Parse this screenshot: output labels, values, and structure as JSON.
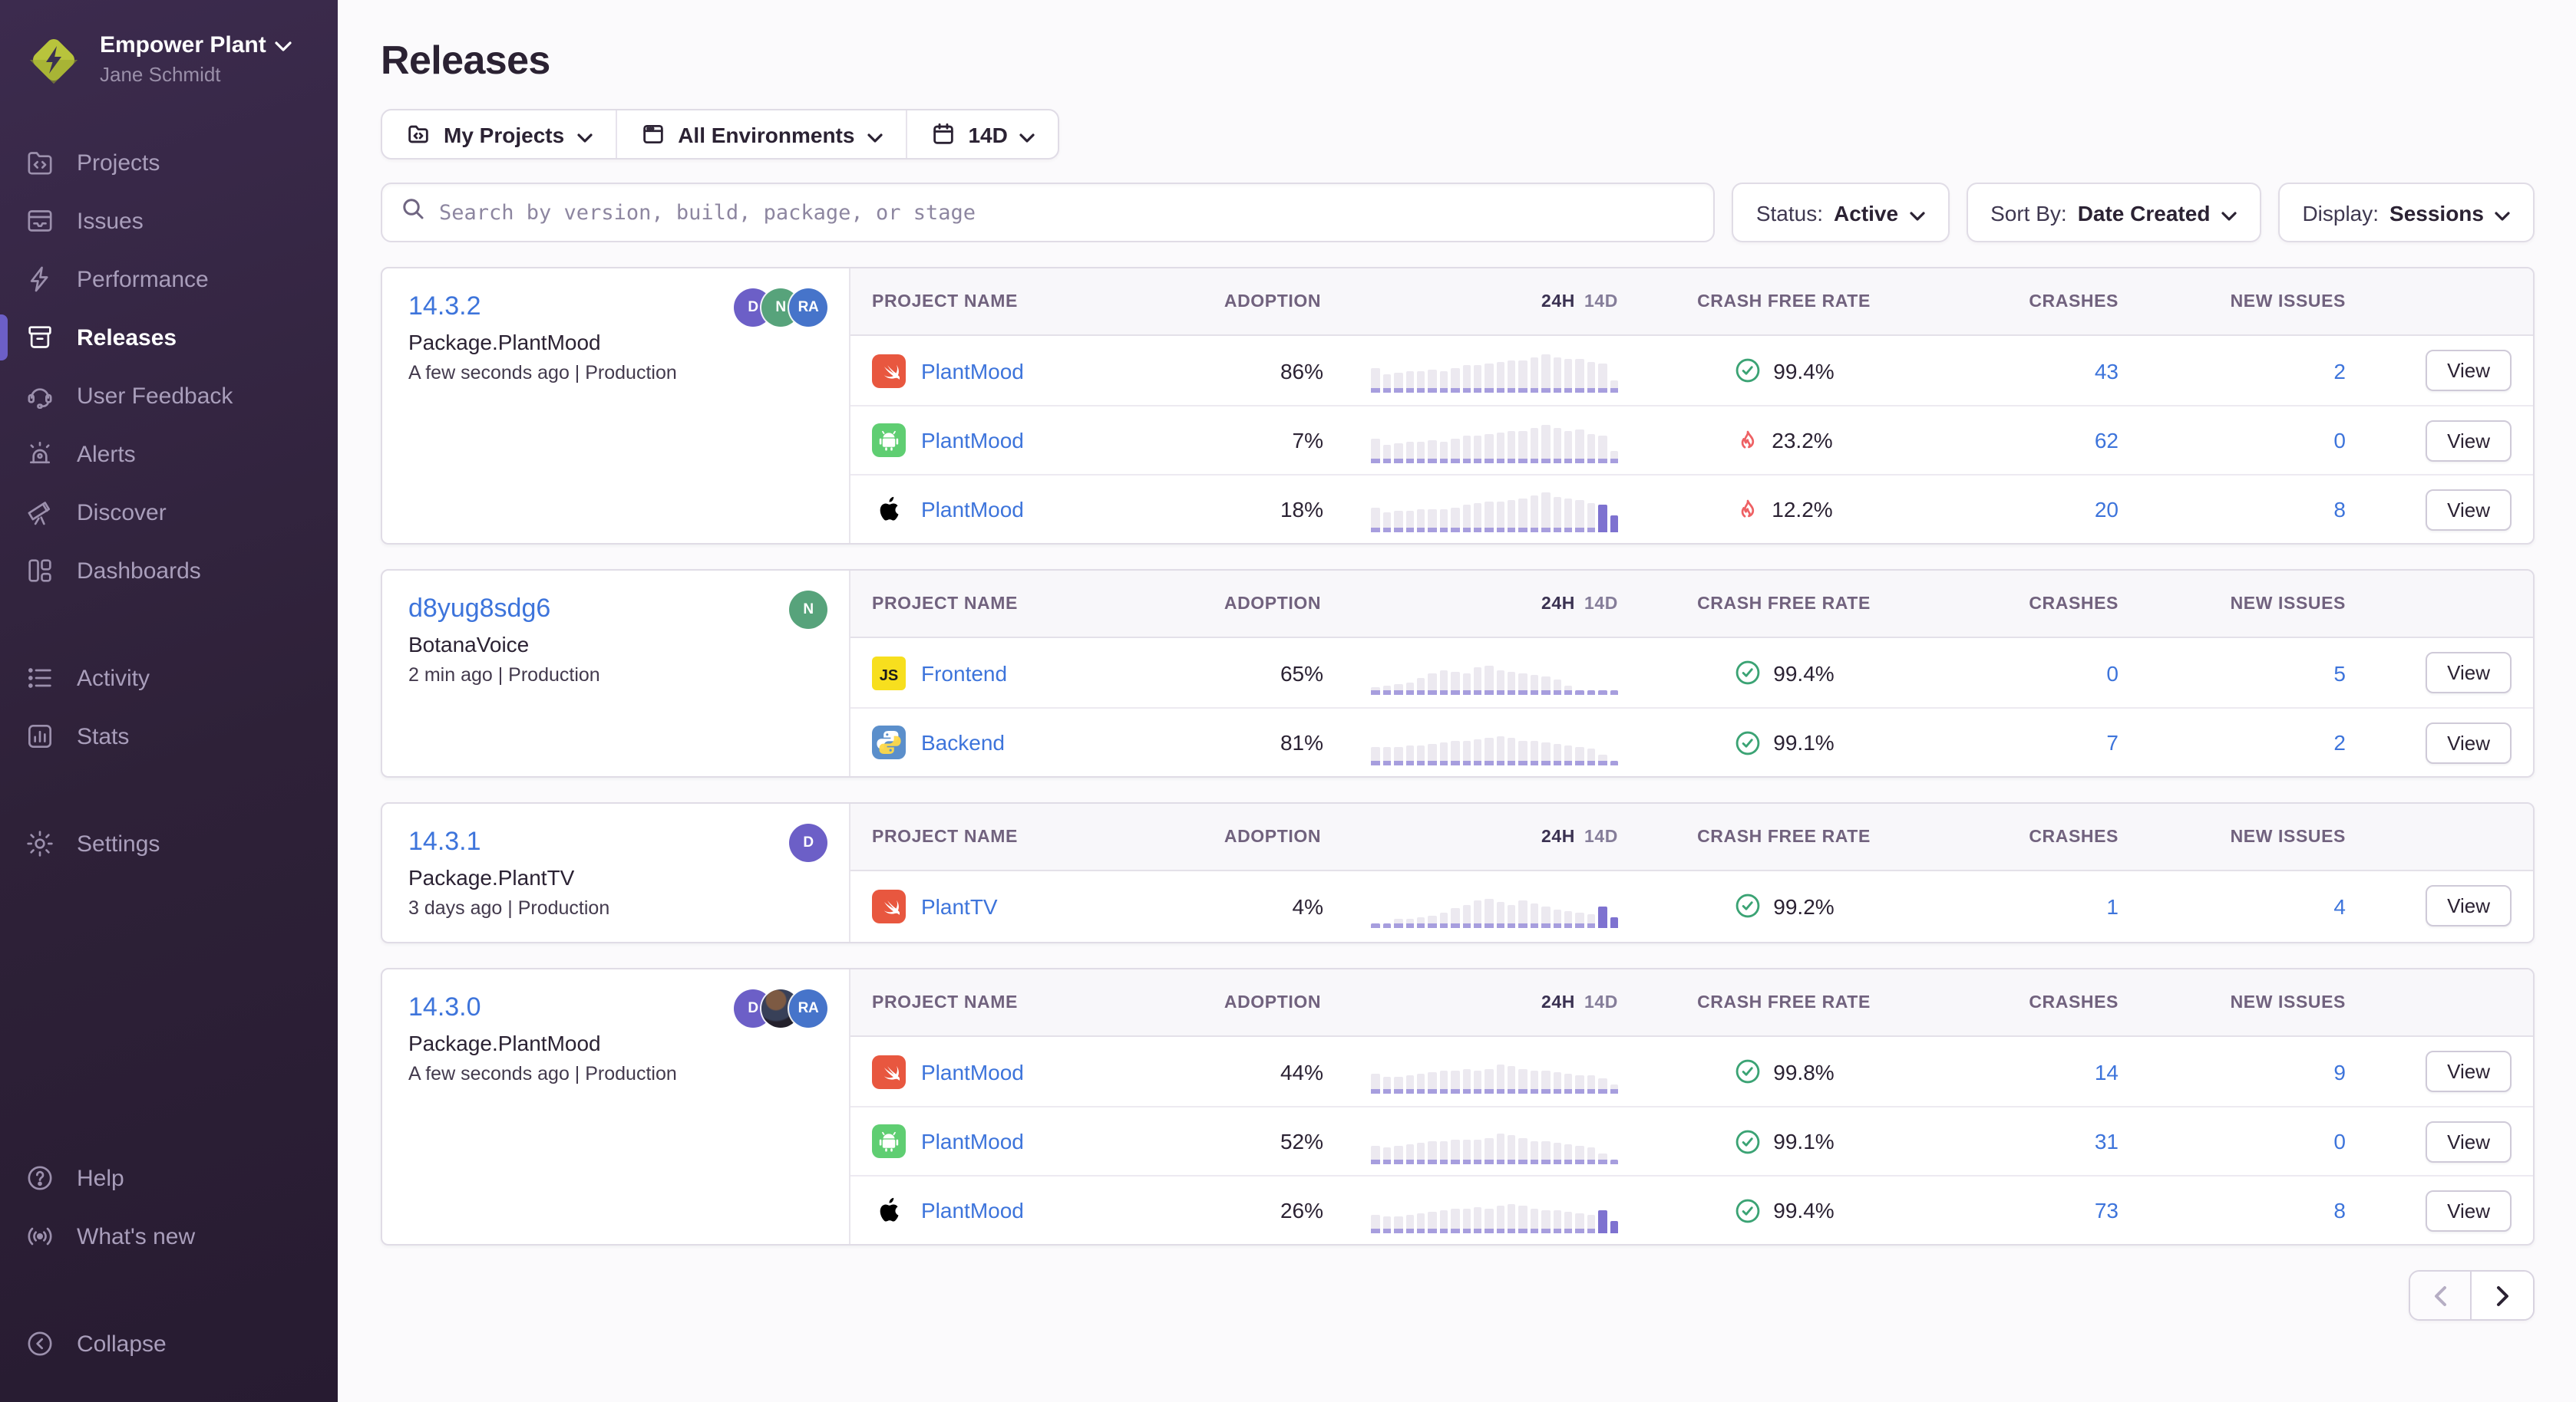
{
  "colors": {
    "accent": "#6C5FC7",
    "link_blue": "#3D74DB",
    "ok_green": "#3BA374",
    "danger_red": "#EE6164",
    "bar_gray": "#ECE9F0",
    "bar_base_purple": "#A79EDE",
    "bar_highlight_purple": "#7E72D0",
    "sidebar_top": "#3C2B4E",
    "sidebar_bottom": "#271B31"
  },
  "sidebar": {
    "org": {
      "name": "Empower Plant",
      "user": "Jane Schmidt"
    },
    "nav_primary": [
      {
        "label": "Projects",
        "icon": "projects-icon",
        "active": false
      },
      {
        "label": "Issues",
        "icon": "issues-icon",
        "active": false
      },
      {
        "label": "Performance",
        "icon": "performance-icon",
        "active": false
      },
      {
        "label": "Releases",
        "icon": "releases-icon",
        "active": true
      },
      {
        "label": "User Feedback",
        "icon": "user-feedback-icon",
        "active": false
      },
      {
        "label": "Alerts",
        "icon": "alerts-icon",
        "active": false
      },
      {
        "label": "Discover",
        "icon": "discover-icon",
        "active": false
      },
      {
        "label": "Dashboards",
        "icon": "dashboards-icon",
        "active": false
      }
    ],
    "nav_secondary": [
      {
        "label": "Activity",
        "icon": "activity-icon",
        "active": false
      },
      {
        "label": "Stats",
        "icon": "stats-icon",
        "active": false
      }
    ],
    "nav_tertiary": [
      {
        "label": "Settings",
        "icon": "settings-icon",
        "active": false
      }
    ],
    "nav_footer": [
      {
        "label": "Help",
        "icon": "help-icon",
        "active": false
      },
      {
        "label": "What's new",
        "icon": "whats-new-icon",
        "active": false
      }
    ],
    "nav_collapse": [
      {
        "label": "Collapse",
        "icon": "collapse-icon",
        "active": false
      }
    ]
  },
  "header": {
    "title": "Releases",
    "filters": [
      {
        "label": "My Projects",
        "icon": "my-projects-icon"
      },
      {
        "label": "All Environments",
        "icon": "environments-icon"
      },
      {
        "label": "14D",
        "icon": "calendar-icon"
      }
    ],
    "search": {
      "placeholder": "Search by version, build, package, or stage"
    },
    "dropdowns": [
      {
        "label": "Status:",
        "value": "Active"
      },
      {
        "label": "Sort By:",
        "value": "Date Created"
      },
      {
        "label": "Display:",
        "value": "Sessions"
      }
    ]
  },
  "table_headers": {
    "project": "Project Name",
    "adoption": "Adoption",
    "trend_24h": "24H",
    "trend_14d": "14D",
    "crash_free": "Crash Free Rate",
    "crashes": "Crashes",
    "new_issues": "New Issues"
  },
  "view_label": "View",
  "releases": [
    {
      "version": "14.3.2",
      "package": "Package.PlantMood",
      "meta": "A few seconds ago | Production",
      "avatars": [
        {
          "type": "initials",
          "initials": "D",
          "color": "#6C5FC7"
        },
        {
          "type": "initials",
          "initials": "N",
          "color": "#57A37B"
        },
        {
          "type": "initials",
          "initials": "RA",
          "color": "#4674CA"
        }
      ],
      "rows": [
        {
          "platform": "swift-icon",
          "project": "PlantMood",
          "adoption": "86%",
          "status": "ok",
          "crash_free": "99.4%",
          "crashes": "43",
          "new_issues": "2",
          "trend": {
            "bars": [
              50,
              34,
              38,
              40,
              42,
              45,
              42,
              48,
              55,
              55,
              60,
              62,
              65,
              68,
              75,
              82,
              75,
              70,
              72,
              62,
              58,
              20
            ],
            "highlight_last": 0
          }
        },
        {
          "platform": "android-icon",
          "project": "PlantMood",
          "adoption": "7%",
          "status": "fire",
          "crash_free": "23.2%",
          "crashes": "62",
          "new_issues": "0",
          "trend": {
            "bars": [
              46,
              32,
              36,
              38,
              40,
              42,
              40,
              46,
              52,
              54,
              58,
              60,
              64,
              66,
              72,
              80,
              72,
              66,
              68,
              58,
              54,
              16
            ],
            "highlight_last": 0
          }
        },
        {
          "platform": "apple-icon",
          "project": "PlantMood",
          "adoption": "18%",
          "status": "fire",
          "crash_free": "12.2%",
          "crashes": "20",
          "new_issues": "8",
          "trend": {
            "bars": [
              48,
              34,
              38,
              40,
              42,
              44,
              42,
              48,
              54,
              56,
              60,
              62,
              66,
              70,
              76,
              82,
              74,
              68,
              64,
              58,
              55,
              28
            ],
            "highlight_last": 2
          }
        }
      ]
    },
    {
      "version": "d8yug8sdg6",
      "package": "BotanaVoice",
      "meta": "2 min ago | Production",
      "avatars": [
        {
          "type": "initials",
          "initials": "N",
          "color": "#57A37B"
        }
      ],
      "rows": [
        {
          "platform": "javascript-icon",
          "project": "Frontend",
          "adoption": "65%",
          "status": "ok",
          "crash_free": "99.4%",
          "crashes": "0",
          "new_issues": "5",
          "trend": {
            "bars": [
              8,
              10,
              14,
              20,
              30,
              40,
              48,
              44,
              40,
              55,
              60,
              48,
              44,
              40,
              36,
              32,
              26,
              12,
              0,
              0,
              0,
              0
            ],
            "highlight_last": 0
          }
        },
        {
          "platform": "python-icon",
          "project": "Backend",
          "adoption": "81%",
          "status": "ok",
          "crash_free": "99.1%",
          "crashes": "7",
          "new_issues": "2",
          "trend": {
            "bars": [
              32,
              30,
              32,
              34,
              36,
              38,
              42,
              46,
              48,
              50,
              54,
              58,
              52,
              48,
              46,
              42,
              38,
              36,
              32,
              26,
              12,
              0
            ],
            "highlight_last": 0
          }
        }
      ]
    },
    {
      "version": "14.3.1",
      "package": "Package.PlantTV",
      "meta": "3 days ago | Production",
      "avatars": [
        {
          "type": "initials",
          "initials": "D",
          "color": "#6C5FC7"
        }
      ],
      "rows": [
        {
          "platform": "swift-icon",
          "project": "PlantTV",
          "adoption": "4%",
          "status": "ok",
          "crash_free": "99.2%",
          "crashes": "1",
          "new_issues": "4",
          "trend": {
            "bars": [
              0,
              0,
              10,
              12,
              14,
              18,
              26,
              36,
              44,
              54,
              60,
              52,
              46,
              56,
              48,
              40,
              34,
              30,
              26,
              24,
              42,
              14
            ],
            "highlight_last": 2
          }
        }
      ]
    },
    {
      "version": "14.3.0",
      "package": "Package.PlantMood",
      "meta": "A few seconds ago | Production",
      "avatars": [
        {
          "type": "initials",
          "initials": "D",
          "color": "#6C5FC7"
        },
        {
          "type": "photo",
          "initials": "",
          "color": "#33303C"
        },
        {
          "type": "initials",
          "initials": "RA",
          "color": "#4674CA"
        }
      ],
      "rows": [
        {
          "platform": "swift-icon",
          "project": "PlantMood",
          "adoption": "44%",
          "status": "ok",
          "crash_free": "99.8%",
          "crashes": "14",
          "new_issues": "9",
          "trend": {
            "bars": [
              36,
              28,
              30,
              32,
              36,
              40,
              44,
              46,
              48,
              46,
              50,
              58,
              54,
              50,
              46,
              44,
              42,
              38,
              34,
              32,
              26,
              10
            ],
            "highlight_last": 0
          }
        },
        {
          "platform": "android-icon",
          "project": "PlantMood",
          "adoption": "52%",
          "status": "ok",
          "crash_free": "99.1%",
          "crashes": "31",
          "new_issues": "0",
          "trend": {
            "bars": [
              32,
              28,
              30,
              34,
              38,
              42,
              44,
              46,
              48,
              46,
              50,
              60,
              56,
              50,
              44,
              42,
              40,
              36,
              32,
              28,
              14,
              0
            ],
            "highlight_last": 0
          }
        },
        {
          "platform": "apple-icon",
          "project": "PlantMood",
          "adoption": "26%",
          "status": "ok",
          "crash_free": "99.4%",
          "crashes": "73",
          "new_issues": "8",
          "trend": {
            "bars": [
              30,
              26,
              28,
              32,
              36,
              40,
              42,
              46,
              48,
              50,
              46,
              52,
              58,
              54,
              48,
              44,
              42,
              38,
              36,
              32,
              44,
              18
            ],
            "highlight_last": 2
          }
        }
      ]
    }
  ],
  "pagination": {
    "prev_icon": "chevron-left-icon",
    "next_icon": "chevron-right-icon"
  }
}
